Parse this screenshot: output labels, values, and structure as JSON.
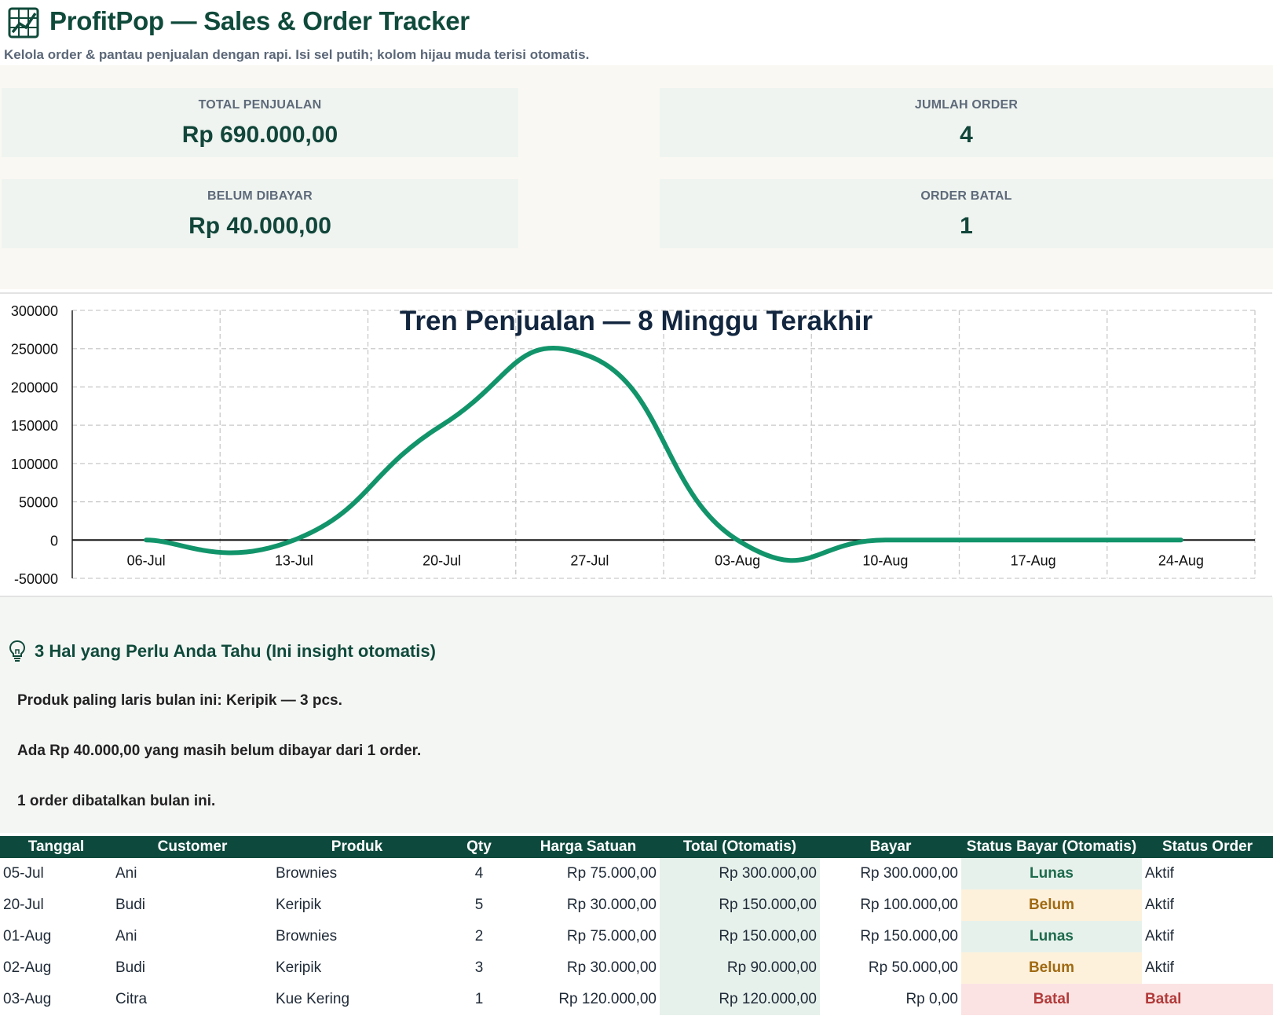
{
  "header": {
    "title": "ProfitPop — Sales & Order Tracker",
    "subtitle": "Kelola order & pantau penjualan dengan rapi. Isi sel putih; kolom hijau muda terisi otomatis.",
    "icon": "chart-line-icon"
  },
  "kpis": [
    {
      "label": "TOTAL PENJUALAN",
      "value": "Rp 690.000,00"
    },
    {
      "label": "JUMLAH ORDER",
      "value": "4"
    },
    {
      "label": "BELUM DIBAYAR",
      "value": "Rp 40.000,00"
    },
    {
      "label": "ORDER BATAL",
      "value": "1"
    }
  ],
  "chart_data": {
    "type": "line",
    "title": "Tren Penjualan — 8 Minggu Terakhir",
    "categories": [
      "06-Jul",
      "13-Jul",
      "20-Jul",
      "27-Jul",
      "03-Aug",
      "10-Aug",
      "17-Aug",
      "24-Aug"
    ],
    "values": [
      0,
      0,
      150000,
      240000,
      0,
      0,
      0,
      0
    ],
    "ylim": [
      -50000,
      300000
    ],
    "yticks": [
      "300000",
      "250000",
      "200000",
      "150000",
      "100000",
      "50000",
      "0",
      "-50000"
    ],
    "smooth": true,
    "grid": true,
    "color": "#12946a"
  },
  "insights": {
    "title": "3 Hal yang Perlu Anda Tahu (Ini insight otomatis)",
    "icon": "lightbulb-icon",
    "items": [
      "Produk paling laris bulan ini: Keripik — 3 pcs.",
      "Ada Rp 40.000,00 yang masih belum dibayar dari 1 order.",
      "1 order dibatalkan bulan ini."
    ]
  },
  "table": {
    "headers": [
      "Tanggal",
      "Customer",
      "Produk",
      "Qty",
      "Harga Satuan",
      "Total (Otomatis)",
      "Bayar",
      "Status Bayar (Otomatis)",
      "Status Order"
    ],
    "rows": [
      [
        "05-Jul",
        "Ani",
        "Brownies",
        "4",
        "Rp 75.000,00",
        "Rp 300.000,00",
        "Rp 300.000,00",
        "Lunas",
        "Aktif"
      ],
      [
        "20-Jul",
        "Budi",
        "Keripik",
        "5",
        "Rp 30.000,00",
        "Rp 150.000,00",
        "Rp 100.000,00",
        "Belum",
        "Aktif"
      ],
      [
        "01-Aug",
        "Ani",
        "Brownies",
        "2",
        "Rp 75.000,00",
        "Rp 150.000,00",
        "Rp 150.000,00",
        "Lunas",
        "Aktif"
      ],
      [
        "02-Aug",
        "Budi",
        "Keripik",
        "3",
        "Rp 30.000,00",
        "Rp 90.000,00",
        "Rp 50.000,00",
        "Belum",
        "Aktif"
      ],
      [
        "03-Aug",
        "Citra",
        "Kue Kering",
        "1",
        "Rp 120.000,00",
        "Rp 120.000,00",
        "Rp 0,00",
        "Batal",
        "Batal"
      ]
    ]
  },
  "colors": {
    "brand": "#0f4a3a",
    "table_header": "#0d4a3d",
    "auto_fill": "#e7f1ec",
    "belum_fill": "#fdf1dc",
    "batal_fill": "#fbe3e3"
  }
}
